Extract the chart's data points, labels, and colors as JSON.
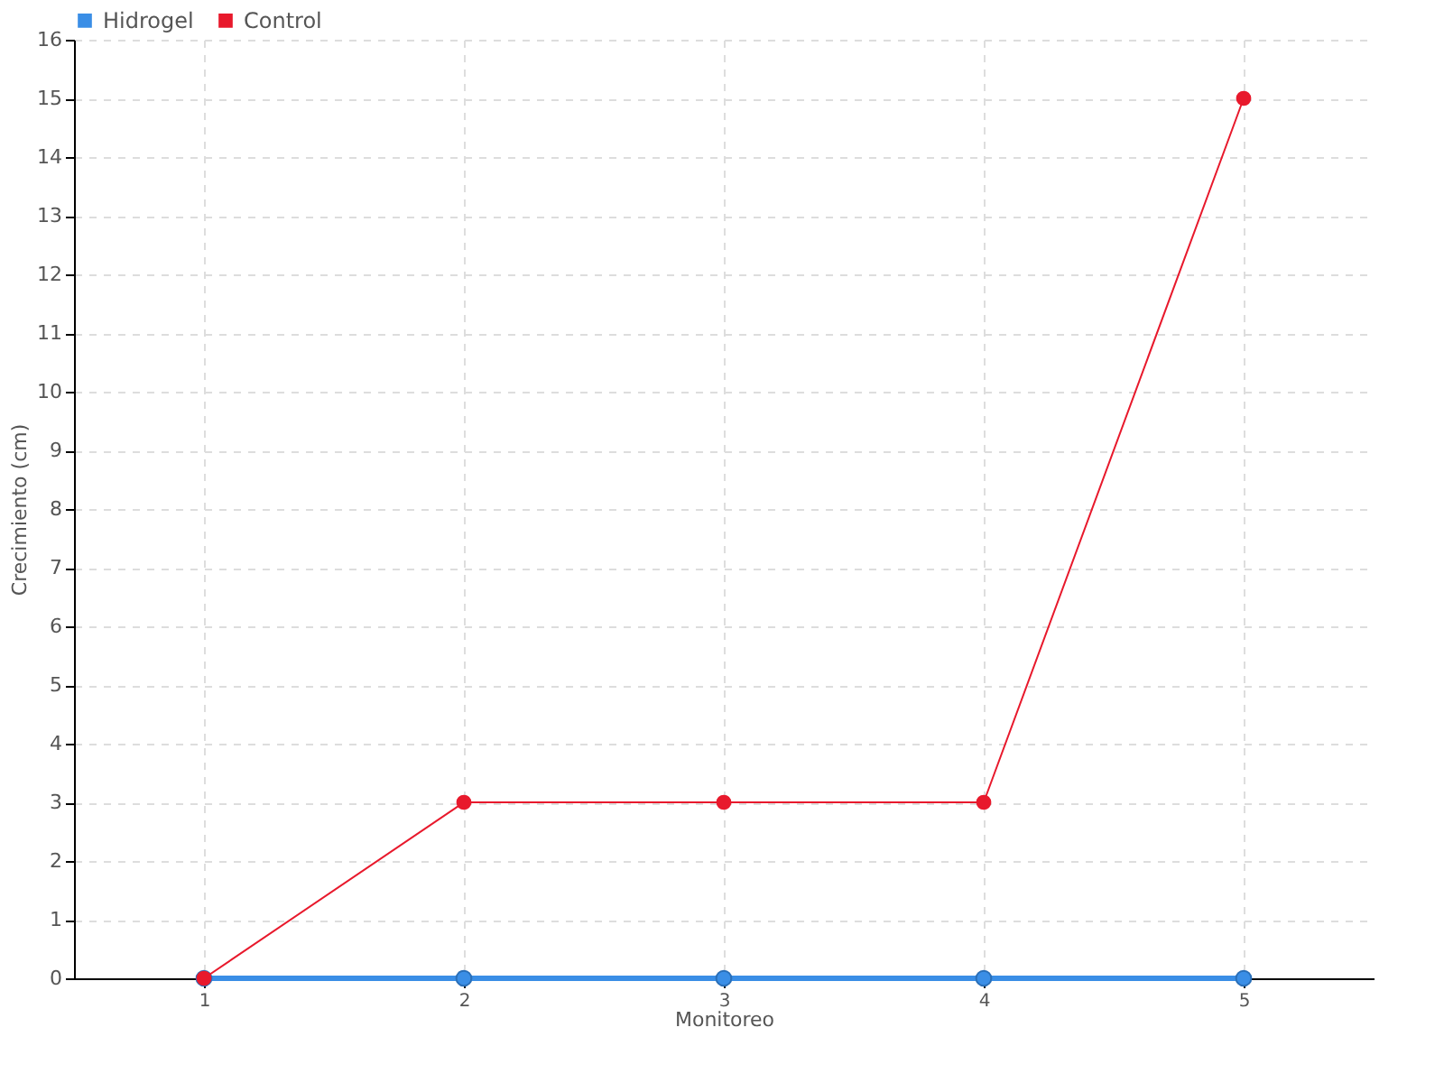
{
  "chart_data": {
    "type": "line",
    "xlabel": "Monitoreo",
    "ylabel": "Crecimiento (cm)",
    "categories": [
      "1",
      "2",
      "3",
      "4",
      "5"
    ],
    "series": [
      {
        "name": "Hidrogel",
        "color": "#3a8ee6",
        "values": [
          0,
          0,
          0,
          0,
          0
        ]
      },
      {
        "name": "Control",
        "color": "#e8192c",
        "values": [
          0,
          3,
          3,
          3,
          15
        ]
      }
    ],
    "ylim": [
      0,
      16
    ],
    "yticks": [
      0,
      1,
      2,
      3,
      4,
      5,
      6,
      7,
      8,
      9,
      10,
      11,
      12,
      13,
      14,
      15,
      16
    ],
    "grid": true,
    "legend": "top left",
    "marker": "circle",
    "line_style": "solid"
  }
}
